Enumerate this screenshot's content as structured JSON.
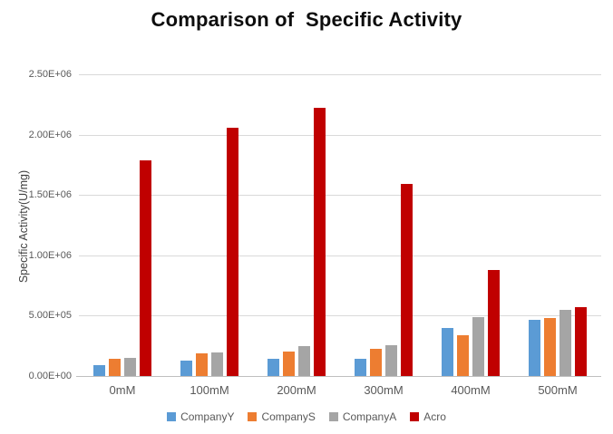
{
  "chart_data": {
    "type": "bar",
    "title": "Comparison of  Specific Activity",
    "xlabel": "",
    "ylabel": "Specific Activity(U/mg)",
    "categories": [
      "0mM",
      "100mM",
      "200mM",
      "300mM",
      "400mM",
      "500mM"
    ],
    "series": [
      {
        "name": "CompanyY",
        "color": "#5B9BD5",
        "values": [
          90000,
          128000,
          143000,
          140000,
          400000,
          465000
        ]
      },
      {
        "name": "CompanyS",
        "color": "#ED7D31",
        "values": [
          140000,
          185000,
          200000,
          225000,
          340000,
          480000
        ]
      },
      {
        "name": "CompanyA",
        "color": "#A5A5A5",
        "values": [
          152000,
          193000,
          250000,
          255000,
          487000,
          545000
        ]
      },
      {
        "name": "Acro",
        "color": "#C00000",
        "values": [
          1790000,
          2060000,
          2220000,
          1590000,
          880000,
          572000
        ]
      }
    ],
    "ylim": [
      0,
      2500000
    ],
    "yticks": {
      "values": [
        0,
        500000,
        1000000,
        1500000,
        2000000,
        2500000
      ],
      "labels": [
        "0.00E+00",
        "5.00E+05",
        "1.00E+06",
        "1.50E+06",
        "2.00E+06",
        "2.50E+06"
      ]
    },
    "grid": true,
    "legend_position": "bottom"
  },
  "colors": {
    "gridline": "#D9D9D9",
    "axis_line": "#BFBFBF",
    "tick_text": "#595959",
    "title_text": "#0D0D0D"
  }
}
